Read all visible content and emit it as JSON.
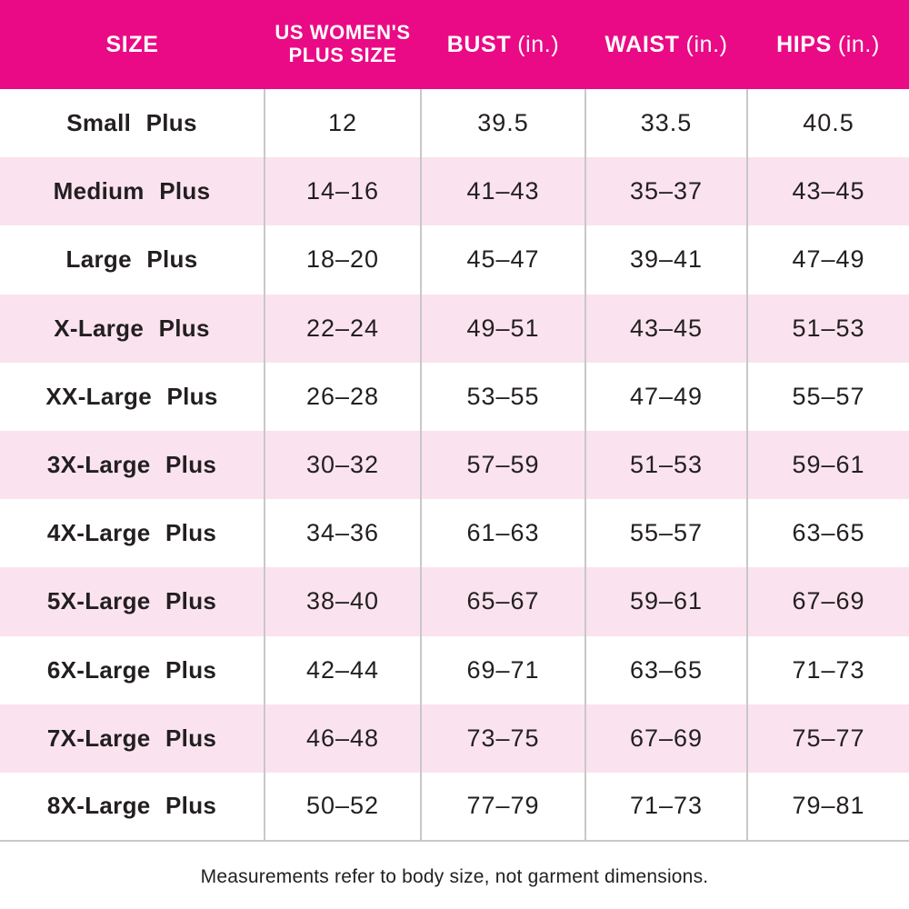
{
  "colors": {
    "header_bg": "#EA0A85",
    "header_text": "#FFFFFF",
    "row_alt_bg": "#FAE3EE",
    "divider": "#C8C8C8",
    "text": "#231F20"
  },
  "header": {
    "columns": [
      {
        "label": "SIZE",
        "unit": ""
      },
      {
        "label": "US WOMEN'S",
        "label_line2": "PLUS SIZE",
        "unit": ""
      },
      {
        "label": "BUST",
        "unit": "(in.)"
      },
      {
        "label": "WAIST",
        "unit": "(in.)"
      },
      {
        "label": "HIPS",
        "unit": "(in.)"
      }
    ]
  },
  "rows": [
    {
      "size": "Small Plus",
      "plus_size": "12",
      "bust": "39.5",
      "waist": "33.5",
      "hips": "40.5"
    },
    {
      "size": "Medium Plus",
      "plus_size": "14–16",
      "bust": "41–43",
      "waist": "35–37",
      "hips": "43–45"
    },
    {
      "size": "Large Plus",
      "plus_size": "18–20",
      "bust": "45–47",
      "waist": "39–41",
      "hips": "47–49"
    },
    {
      "size": "X-Large Plus",
      "plus_size": "22–24",
      "bust": "49–51",
      "waist": "43–45",
      "hips": "51–53"
    },
    {
      "size": "XX-Large Plus",
      "plus_size": "26–28",
      "bust": "53–55",
      "waist": "47–49",
      "hips": "55–57"
    },
    {
      "size": "3X-Large Plus",
      "plus_size": "30–32",
      "bust": "57–59",
      "waist": "51–53",
      "hips": "59–61"
    },
    {
      "size": "4X-Large Plus",
      "plus_size": "34–36",
      "bust": "61–63",
      "waist": "55–57",
      "hips": "63–65"
    },
    {
      "size": "5X-Large Plus",
      "plus_size": "38–40",
      "bust": "65–67",
      "waist": "59–61",
      "hips": "67–69"
    },
    {
      "size": "6X-Large Plus",
      "plus_size": "42–44",
      "bust": "69–71",
      "waist": "63–65",
      "hips": "71–73"
    },
    {
      "size": "7X-Large Plus",
      "plus_size": "46–48",
      "bust": "73–75",
      "waist": "67–69",
      "hips": "75–77"
    },
    {
      "size": "8X-Large Plus",
      "plus_size": "50–52",
      "bust": "77–79",
      "waist": "71–73",
      "hips": "79–81"
    }
  ],
  "footnote": "Measurements refer to body size, not garment dimensions.",
  "chart_data": {
    "type": "table",
    "title": "US Women's plus size chart",
    "columns": [
      "SIZE",
      "US WOMEN'S PLUS SIZE",
      "BUST (in.)",
      "WAIST (in.)",
      "HIPS (in.)"
    ],
    "rows": [
      [
        "Small Plus",
        "12",
        "39.5",
        "33.5",
        "40.5"
      ],
      [
        "Medium Plus",
        "14–16",
        "41–43",
        "35–37",
        "43–45"
      ],
      [
        "Large Plus",
        "18–20",
        "45–47",
        "39–41",
        "47–49"
      ],
      [
        "X-Large Plus",
        "22–24",
        "49–51",
        "43–45",
        "51–53"
      ],
      [
        "XX-Large Plus",
        "26–28",
        "53–55",
        "47–49",
        "55–57"
      ],
      [
        "3X-Large Plus",
        "30–32",
        "57–59",
        "51–53",
        "59–61"
      ],
      [
        "4X-Large Plus",
        "34–36",
        "61–63",
        "55–57",
        "63–65"
      ],
      [
        "5X-Large Plus",
        "38–40",
        "65–67",
        "59–61",
        "67–69"
      ],
      [
        "6X-Large Plus",
        "42–44",
        "69–71",
        "63–65",
        "71–73"
      ],
      [
        "7X-Large Plus",
        "46–48",
        "73–75",
        "67–69",
        "75–77"
      ],
      [
        "8X-Large Plus",
        "50–52",
        "77–79",
        "71–73",
        "79–81"
      ]
    ],
    "footnote": "Measurements refer to body size, not garment dimensions."
  }
}
